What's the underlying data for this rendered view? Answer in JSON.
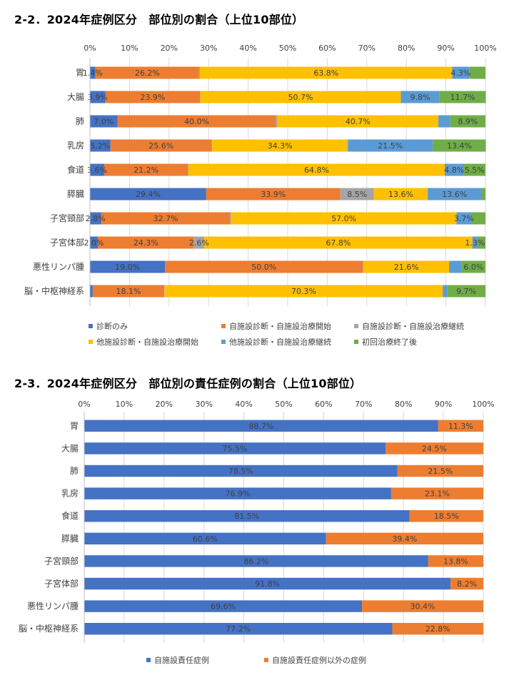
{
  "chart_data": [
    {
      "type": "stacked-bar-horizontal",
      "title": "2-2．2024年症例区分　部位別の割合（上位10部位）",
      "xlim": [
        0,
        100
      ],
      "x_ticks": [
        "0%",
        "10%",
        "20%",
        "30%",
        "40%",
        "50%",
        "60%",
        "70%",
        "80%",
        "90%",
        "100%"
      ],
      "categories": [
        "胃",
        "大腸",
        "肺",
        "乳房",
        "食道",
        "膵臓",
        "子宮頸部",
        "子宮体部",
        "悪性リンパ腫",
        "脳・中枢神経系"
      ],
      "series": [
        {
          "name": "診断のみ",
          "color": "#4472C4",
          "values": [
            1.4,
            3.9,
            7.0,
            5.2,
            3.6,
            29.4,
            2.8,
            2.0,
            19.0,
            0.7
          ]
        },
        {
          "name": "自施設診断・自施設治療開始",
          "color": "#ED7D31",
          "values": [
            26.2,
            23.9,
            40.0,
            25.6,
            21.2,
            33.9,
            32.7,
            24.3,
            50.0,
            18.1
          ]
        },
        {
          "name": "自施設診断・自施設治療継続",
          "color": "#A5A5A5",
          "values": [
            0.2,
            0.1,
            0.4,
            0.1,
            0.1,
            8.5,
            0.2,
            2.6,
            0.2,
            0.1
          ]
        },
        {
          "name": "他施設診断・自施設治療開始",
          "color": "#FFC000",
          "values": [
            63.8,
            50.7,
            40.7,
            34.3,
            64.8,
            13.6,
            57.0,
            67.8,
            21.6,
            70.3
          ]
        },
        {
          "name": "他施設診断・自施設治療継続",
          "color": "#5B9BD5",
          "values": [
            4.3,
            9.8,
            3.0,
            21.5,
            4.8,
            13.6,
            3.7,
            1.3,
            3.2,
            1.1
          ]
        },
        {
          "name": "初回治療終了後",
          "color": "#70AD47",
          "values": [
            4.1,
            11.7,
            8.9,
            13.4,
            5.5,
            1.0,
            3.6,
            2.0,
            6.0,
            9.7
          ]
        }
      ],
      "labels": [
        {
          "category": 0,
          "series": 0,
          "text": "1.4%"
        },
        {
          "category": 0,
          "series": 1,
          "text": "26.2%"
        },
        {
          "category": 0,
          "series": 3,
          "text": "63.8%"
        },
        {
          "category": 0,
          "series": 4,
          "text": "4.3%"
        },
        {
          "category": 1,
          "series": 0,
          "text": "3.9%"
        },
        {
          "category": 1,
          "series": 1,
          "text": "23.9%"
        },
        {
          "category": 1,
          "series": 3,
          "text": "50.7%"
        },
        {
          "category": 1,
          "series": 4,
          "text": "9.8%"
        },
        {
          "category": 1,
          "series": 5,
          "text": "11.7%"
        },
        {
          "category": 2,
          "series": 0,
          "text": "7.0%"
        },
        {
          "category": 2,
          "series": 1,
          "text": "40.0%"
        },
        {
          "category": 2,
          "series": 3,
          "text": "40.7%"
        },
        {
          "category": 2,
          "series": 5,
          "text": "8.9%"
        },
        {
          "category": 3,
          "series": 0,
          "text": "5.2%"
        },
        {
          "category": 3,
          "series": 1,
          "text": "25.6%"
        },
        {
          "category": 3,
          "series": 3,
          "text": "34.3%"
        },
        {
          "category": 3,
          "series": 4,
          "text": "21.5%"
        },
        {
          "category": 3,
          "series": 5,
          "text": "13.4%"
        },
        {
          "category": 4,
          "series": 0,
          "text": "3.6%"
        },
        {
          "category": 4,
          "series": 1,
          "text": "21.2%"
        },
        {
          "category": 4,
          "series": 3,
          "text": "64.8%"
        },
        {
          "category": 4,
          "series": 4,
          "text": "4.8%"
        },
        {
          "category": 4,
          "series": 5,
          "text": "5.5%"
        },
        {
          "category": 5,
          "series": 0,
          "text": "29.4%"
        },
        {
          "category": 5,
          "series": 1,
          "text": "33.9%"
        },
        {
          "category": 5,
          "series": 2,
          "text": "8.5%"
        },
        {
          "category": 5,
          "series": 3,
          "text": "13.6%"
        },
        {
          "category": 5,
          "series": 4,
          "text": "13.6%"
        },
        {
          "category": 6,
          "series": 0,
          "text": "2.8%"
        },
        {
          "category": 6,
          "series": 1,
          "text": "32.7%"
        },
        {
          "category": 6,
          "series": 3,
          "text": "57.0%"
        },
        {
          "category": 6,
          "series": 4,
          "text": "3.7%"
        },
        {
          "category": 7,
          "series": 0,
          "text": "2.0%"
        },
        {
          "category": 7,
          "series": 1,
          "text": "24.3%"
        },
        {
          "category": 7,
          "series": 2,
          "text": "2.6%"
        },
        {
          "category": 7,
          "series": 3,
          "text": "67.8%"
        },
        {
          "category": 7,
          "series": 4,
          "text": "1.3%"
        },
        {
          "category": 8,
          "series": 0,
          "text": "19.0%"
        },
        {
          "category": 8,
          "series": 1,
          "text": "50.0%"
        },
        {
          "category": 8,
          "series": 3,
          "text": "21.6%"
        },
        {
          "category": 8,
          "series": 5,
          "text": "6.0%"
        },
        {
          "category": 9,
          "series": 1,
          "text": "18.1%"
        },
        {
          "category": 9,
          "series": 3,
          "text": "70.3%"
        },
        {
          "category": 9,
          "series": 5,
          "text": "9.7%"
        }
      ],
      "legend": [
        "診断のみ",
        "自施設診断・自施設治療開始",
        "自施設診断・自施設治療継続",
        "他施設診断・自施設治療開始",
        "他施設診断・自施設治療継続",
        "初回治療終了後"
      ],
      "legend_position": "bottom"
    },
    {
      "type": "stacked-bar-horizontal",
      "title": "2-3．2024年症例区分　部位別の責任症例の割合（上位10部位）",
      "xlim": [
        0,
        100
      ],
      "x_ticks": [
        "0%",
        "10%",
        "20%",
        "30%",
        "40%",
        "50%",
        "60%",
        "70%",
        "80%",
        "90%",
        "100%"
      ],
      "categories": [
        "胃",
        "大腸",
        "肺",
        "乳房",
        "食道",
        "膵臓",
        "子宮頸部",
        "子宮体部",
        "悪性リンパ腫",
        "脳・中枢神経系"
      ],
      "series": [
        {
          "name": "自施設責任症例",
          "color": "#4472C4",
          "values": [
            88.7,
            75.5,
            78.5,
            76.9,
            81.5,
            60.6,
            86.2,
            91.8,
            69.6,
            77.2
          ]
        },
        {
          "name": "自施設責任症例以外の症例",
          "color": "#ED7D31",
          "values": [
            11.3,
            24.5,
            21.5,
            23.1,
            18.5,
            39.4,
            13.8,
            8.2,
            30.4,
            22.8
          ]
        }
      ],
      "labels": [
        {
          "category": 0,
          "series": 0,
          "text": "88.7%"
        },
        {
          "category": 0,
          "series": 1,
          "text": "11.3%"
        },
        {
          "category": 1,
          "series": 0,
          "text": "75.5%"
        },
        {
          "category": 1,
          "series": 1,
          "text": "24.5%"
        },
        {
          "category": 2,
          "series": 0,
          "text": "78.5%"
        },
        {
          "category": 2,
          "series": 1,
          "text": "21.5%"
        },
        {
          "category": 3,
          "series": 0,
          "text": "76.9%"
        },
        {
          "category": 3,
          "series": 1,
          "text": "23.1%"
        },
        {
          "category": 4,
          "series": 0,
          "text": "81.5%"
        },
        {
          "category": 4,
          "series": 1,
          "text": "18.5%"
        },
        {
          "category": 5,
          "series": 0,
          "text": "60.6%"
        },
        {
          "category": 5,
          "series": 1,
          "text": "39.4%"
        },
        {
          "category": 6,
          "series": 0,
          "text": "86.2%"
        },
        {
          "category": 6,
          "series": 1,
          "text": "13.8%"
        },
        {
          "category": 7,
          "series": 0,
          "text": "91.8%"
        },
        {
          "category": 7,
          "series": 1,
          "text": "8.2%"
        },
        {
          "category": 8,
          "series": 0,
          "text": "69.6%"
        },
        {
          "category": 8,
          "series": 1,
          "text": "30.4%"
        },
        {
          "category": 9,
          "series": 0,
          "text": "77.2%"
        },
        {
          "category": 9,
          "series": 1,
          "text": "22.8%"
        }
      ],
      "legend": [
        "自施設責任症例",
        "自施設責任症例以外の症例"
      ],
      "legend_position": "bottom"
    }
  ]
}
